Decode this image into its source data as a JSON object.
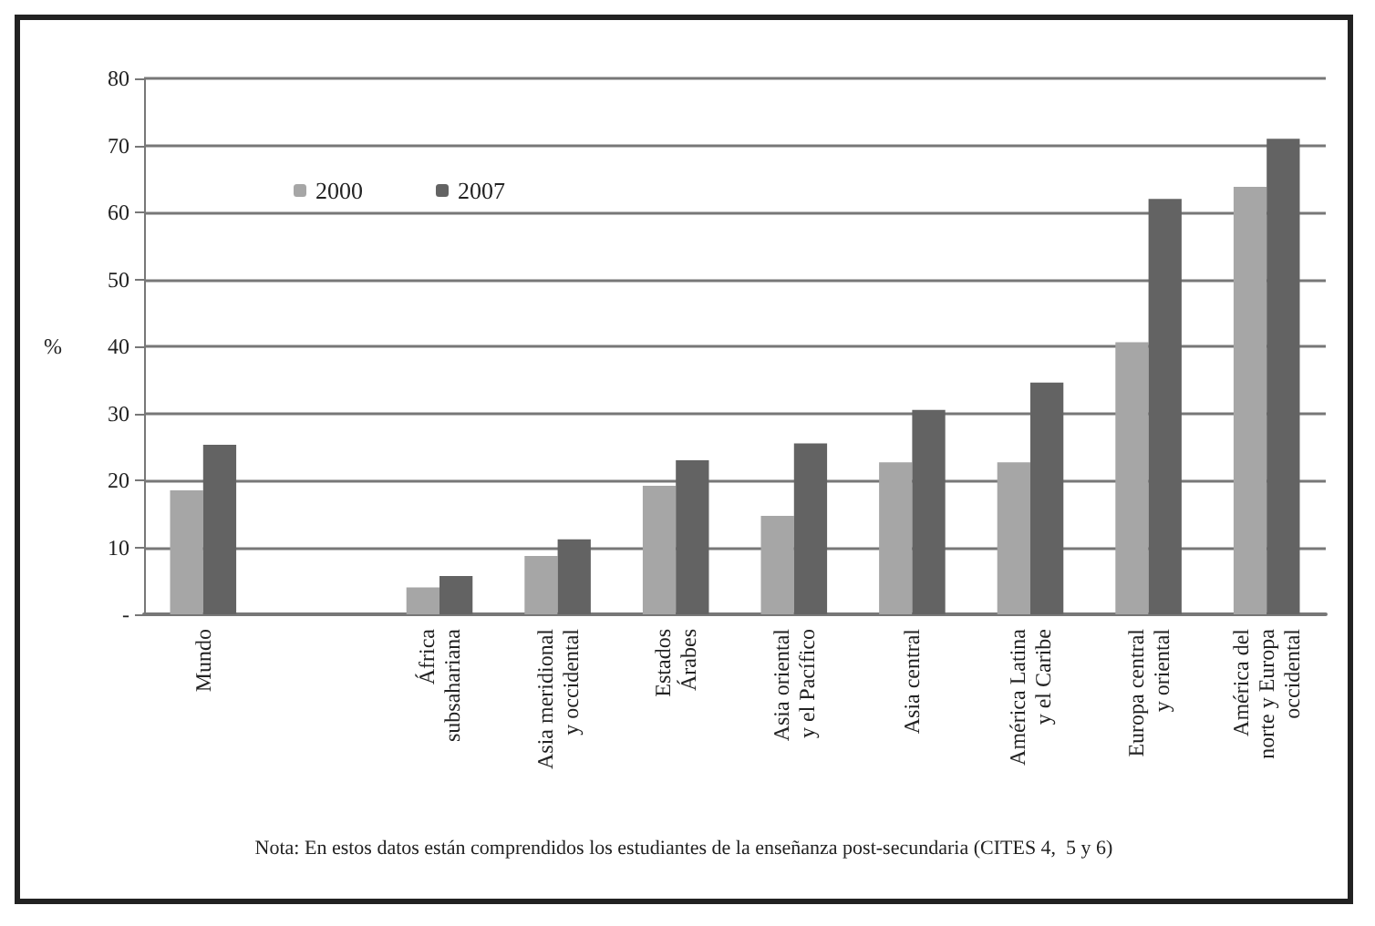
{
  "chart_data": {
    "type": "bar",
    "ylabel": "%",
    "categories": [
      "Mundo",
      null,
      "África\nsubsahariana",
      "Asia meridional\ny occidental",
      "Estados\nÁrabes",
      "Asia oriental\ny el Pacífico",
      "Asia central",
      "América Latina\ny el Caribe",
      "Europa central\ny oriental",
      "América del\nnorte y Europa\noccidental"
    ],
    "series": [
      {
        "name": "2000",
        "color": "#a6a6a6",
        "values": [
          18.5,
          null,
          4,
          8.7,
          19.2,
          14.7,
          22.7,
          22.7,
          40.6,
          63.8
        ]
      },
      {
        "name": "2007",
        "color": "#636363",
        "values": [
          25.3,
          null,
          5.7,
          11.2,
          23,
          25.5,
          30.5,
          34.6,
          62,
          71
        ]
      }
    ],
    "ylim": [
      0,
      80
    ],
    "yticks": [
      {
        "value": 0,
        "label": "-"
      },
      10,
      20,
      30,
      40,
      50,
      60,
      70,
      80
    ],
    "grid": "y",
    "legend": "top left",
    "annotations": [
      "Nota: En estos datos están comprendidos los estudiantes de la enseñanza post-secundaria (CITES 4,  5 y 6)"
    ]
  }
}
